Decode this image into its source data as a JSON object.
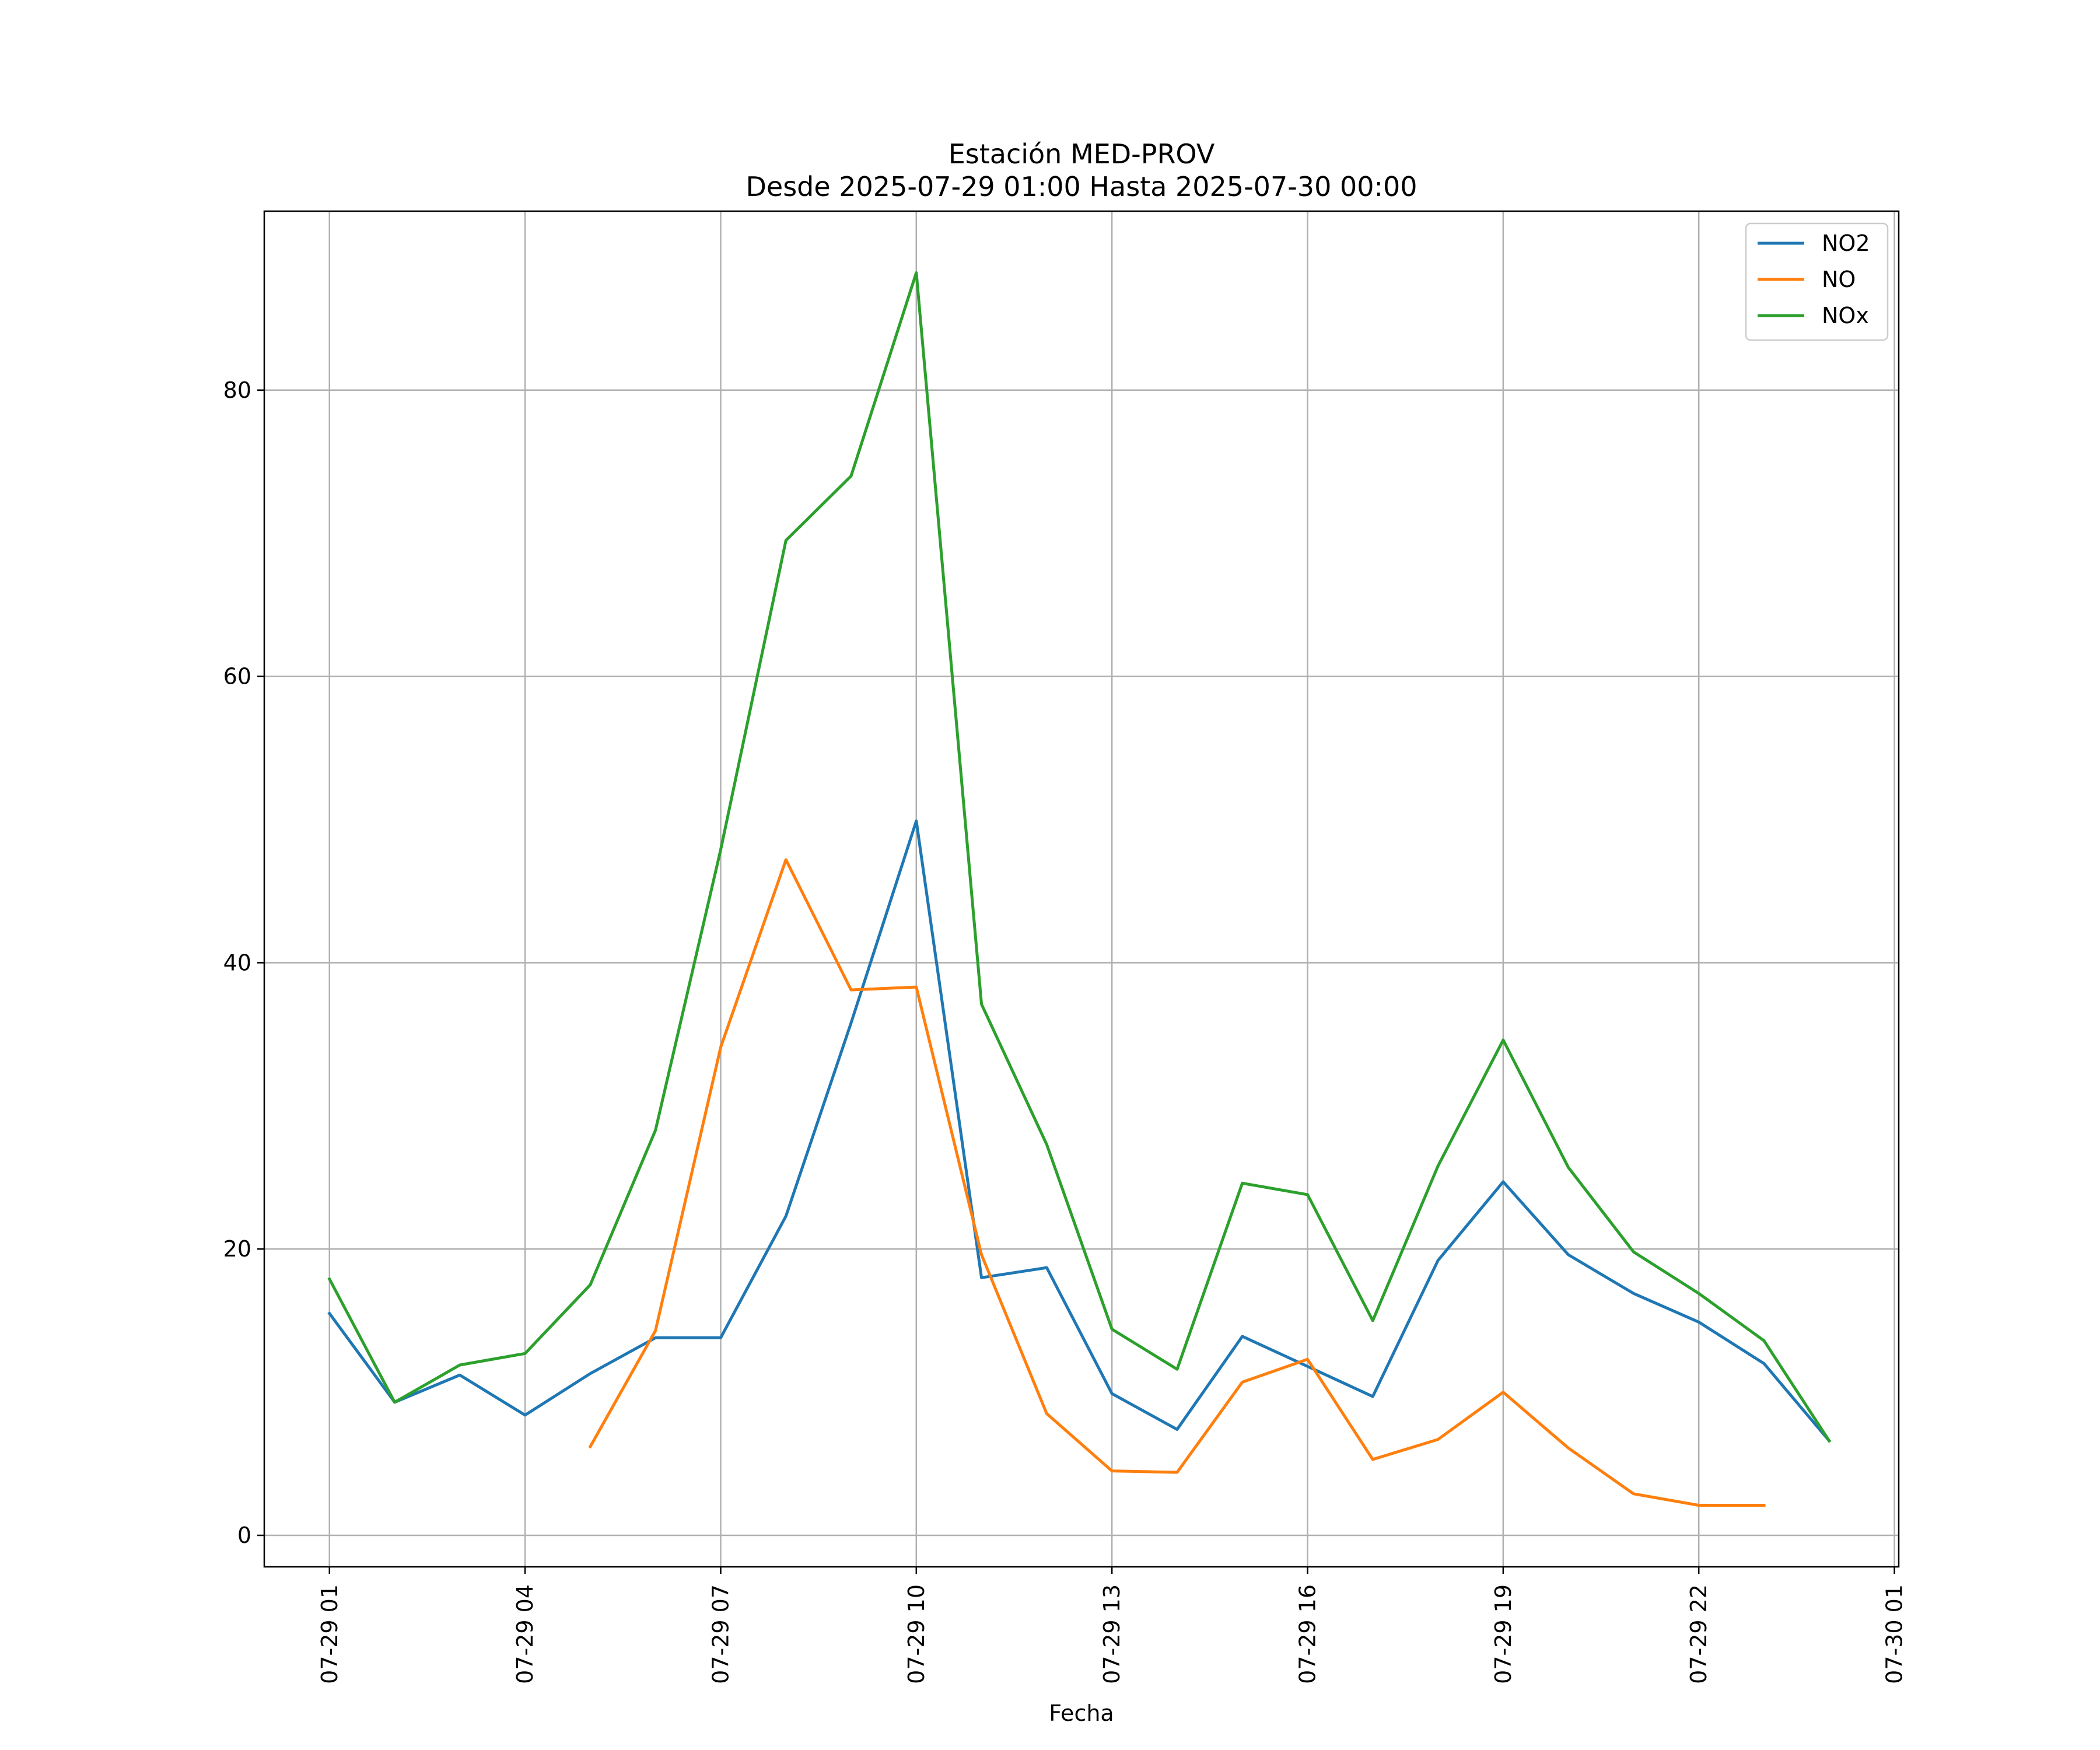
{
  "chart_data": {
    "type": "line",
    "title": "Estación MED-PROV",
    "subtitle": "Desde 2025-07-29 01:00 Hasta 2025-07-30 00:00",
    "xlabel": "Fecha",
    "ylabel": "",
    "ylim": [
      -2.2,
      92.5
    ],
    "xlim": [
      "2025-07-29 00:00",
      "2025-07-30 01:04"
    ],
    "grid": true,
    "legend_position": "top-right",
    "x_ticks": [
      {
        "value": "2025-07-29 01:00",
        "label": "07-29 01"
      },
      {
        "value": "2025-07-29 04:00",
        "label": "07-29 04"
      },
      {
        "value": "2025-07-29 07:00",
        "label": "07-29 07"
      },
      {
        "value": "2025-07-29 10:00",
        "label": "07-29 10"
      },
      {
        "value": "2025-07-29 13:00",
        "label": "07-29 13"
      },
      {
        "value": "2025-07-29 16:00",
        "label": "07-29 16"
      },
      {
        "value": "2025-07-29 19:00",
        "label": "07-29 19"
      },
      {
        "value": "2025-07-29 22:00",
        "label": "07-29 22"
      },
      {
        "value": "2025-07-30 01:00",
        "label": "07-30 01"
      }
    ],
    "y_ticks": [
      {
        "value": 0,
        "label": "0"
      },
      {
        "value": 20,
        "label": "20"
      },
      {
        "value": 40,
        "label": "40"
      },
      {
        "value": 60,
        "label": "60"
      },
      {
        "value": 80,
        "label": "80"
      }
    ],
    "x": [
      "2025-07-29 01:00",
      "2025-07-29 02:00",
      "2025-07-29 03:00",
      "2025-07-29 04:00",
      "2025-07-29 05:00",
      "2025-07-29 06:00",
      "2025-07-29 07:00",
      "2025-07-29 08:00",
      "2025-07-29 09:00",
      "2025-07-29 10:00",
      "2025-07-29 11:00",
      "2025-07-29 12:00",
      "2025-07-29 13:00",
      "2025-07-29 14:00",
      "2025-07-29 15:00",
      "2025-07-29 16:00",
      "2025-07-29 17:00",
      "2025-07-29 18:00",
      "2025-07-29 19:00",
      "2025-07-29 20:00",
      "2025-07-29 21:00",
      "2025-07-29 22:00",
      "2025-07-29 23:00",
      "2025-07-30 00:00"
    ],
    "series": [
      {
        "name": "NO2",
        "color": "#1f77b4",
        "values": [
          15.5,
          9.3,
          11.2,
          8.4,
          11.3,
          13.8,
          13.8,
          22.3,
          35.8,
          49.9,
          18.0,
          18.7,
          9.9,
          7.4,
          13.9,
          11.8,
          9.7,
          19.2,
          24.7,
          19.6,
          16.9,
          14.9,
          12.0,
          6.6
        ]
      },
      {
        "name": "NO",
        "color": "#ff7f0e",
        "values": [
          null,
          null,
          null,
          null,
          6.2,
          14.3,
          34.1,
          47.2,
          38.1,
          38.3,
          19.6,
          8.5,
          4.5,
          4.4,
          10.7,
          12.3,
          5.3,
          6.7,
          10.0,
          6.1,
          2.9,
          2.1,
          2.1,
          null
        ]
      },
      {
        "name": "NOx",
        "color": "#2ca02c",
        "values": [
          17.9,
          9.3,
          11.9,
          12.7,
          17.5,
          28.3,
          47.9,
          69.5,
          74.0,
          88.2,
          37.1,
          27.3,
          14.4,
          11.6,
          24.6,
          23.8,
          15.0,
          25.8,
          34.6,
          25.7,
          19.8,
          16.9,
          13.6,
          6.6
        ]
      }
    ]
  }
}
